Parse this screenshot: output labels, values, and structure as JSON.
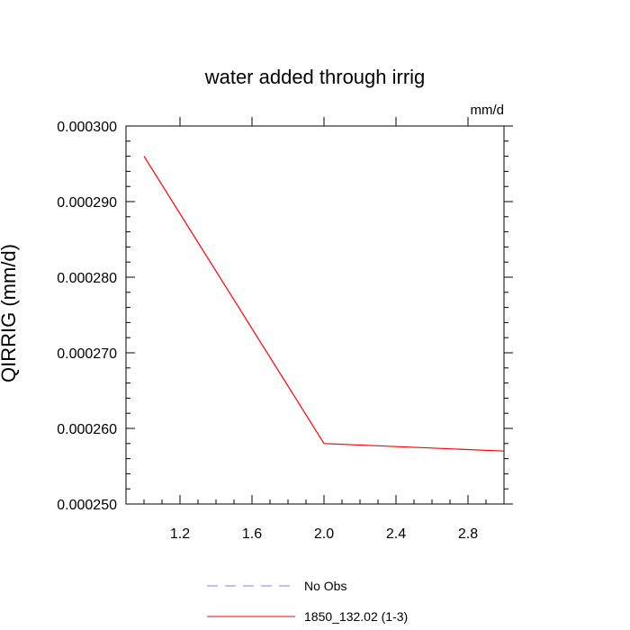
{
  "chart_data": {
    "type": "line",
    "title": "water added through irrig",
    "units_label": "mm/d",
    "ylabel": "QIRRIG  (mm/d)",
    "xlabel": "",
    "xlim": [
      0.9,
      3.0
    ],
    "ylim": [
      0.00025,
      0.0003
    ],
    "xticks": [
      "1.2",
      "1.6",
      "2.0",
      "2.4",
      "2.8"
    ],
    "yticks": [
      "0.000250",
      "0.000260",
      "0.000270",
      "0.000280",
      "0.000290",
      "0.000300"
    ],
    "grid": false,
    "legend_position": "bottom",
    "series": [
      {
        "name": "No Obs",
        "color": "#8080ff",
        "style": "dashed",
        "x": [],
        "y": []
      },
      {
        "name": "1850_132.02 (1-3)",
        "color": "#ff0000",
        "style": "solid",
        "x": [
          1.0,
          2.0,
          3.0
        ],
        "y": [
          0.000296,
          0.000258,
          0.000257
        ]
      }
    ]
  }
}
